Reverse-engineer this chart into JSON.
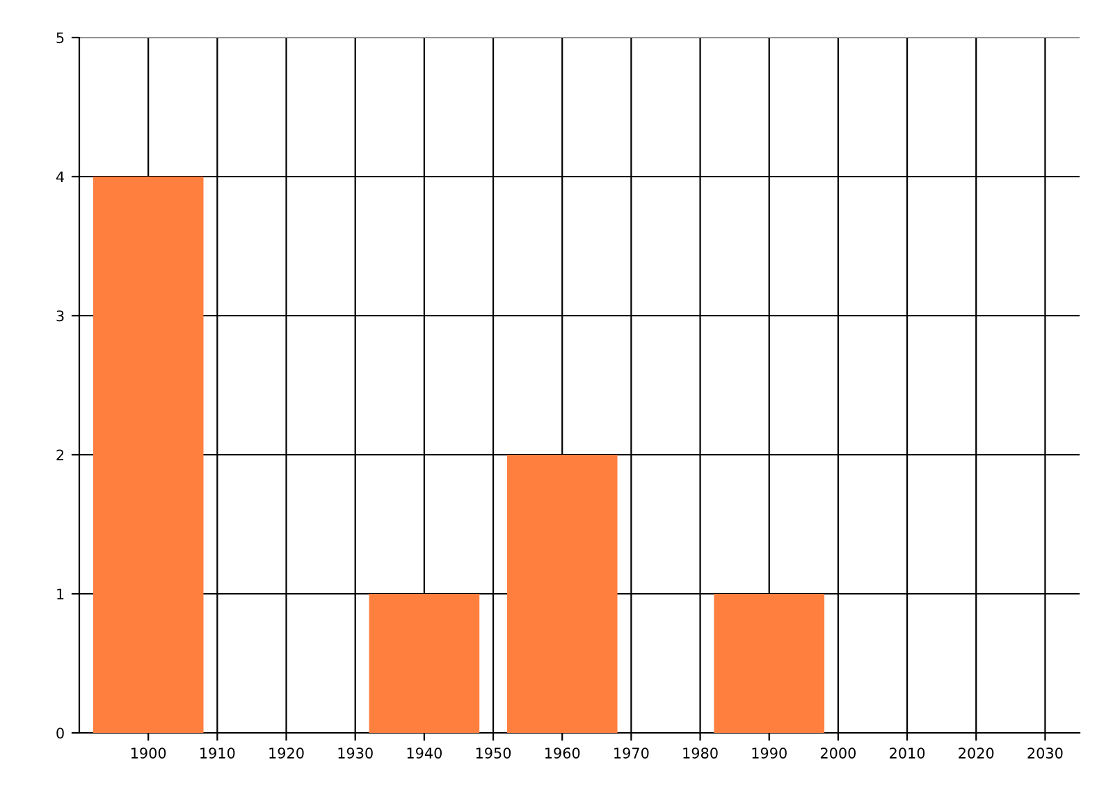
{
  "chart_data": {
    "type": "bar",
    "x": [
      1900,
      1940,
      1960,
      1990
    ],
    "values": [
      4,
      1,
      2,
      1
    ],
    "color": "#ff7f3f",
    "xlim": [
      1890,
      2035
    ],
    "xticks": [
      1900,
      1910,
      1920,
      1930,
      1940,
      1950,
      1960,
      1970,
      1980,
      1990,
      2000,
      2010,
      2020,
      2030
    ],
    "ylim": [
      0,
      5
    ],
    "yticks": [
      0,
      1,
      2,
      3,
      4,
      5
    ],
    "grid": true,
    "legend": false
  }
}
